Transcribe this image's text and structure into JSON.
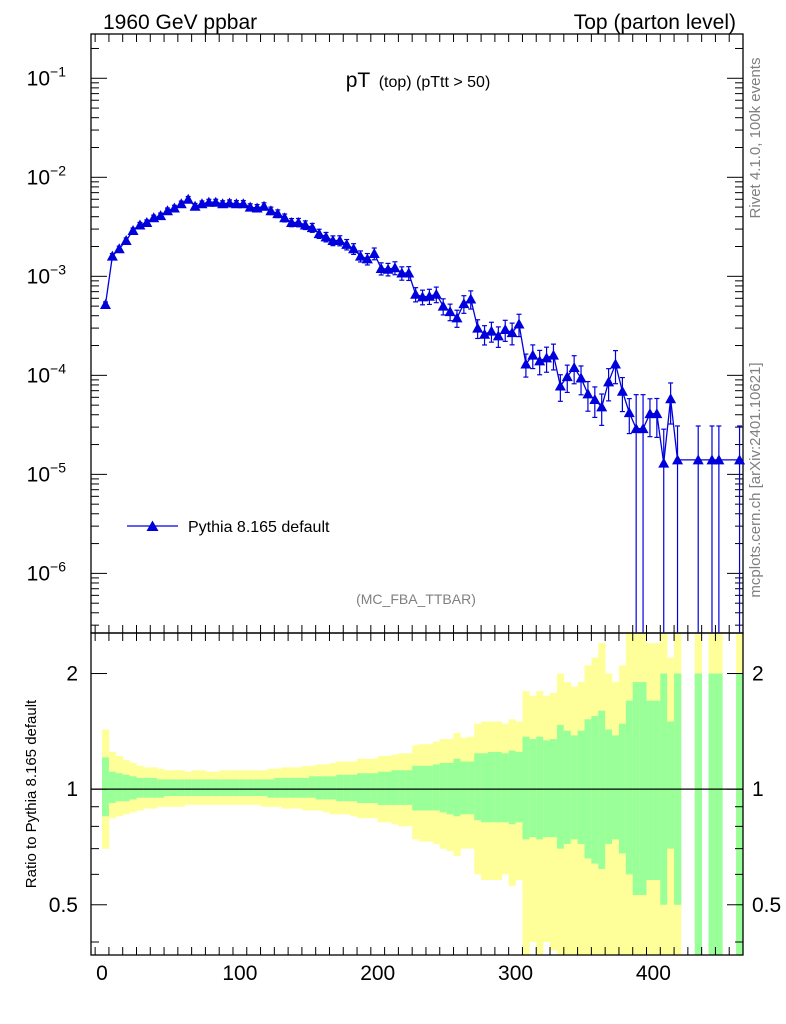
{
  "header": {
    "left": "1960 GeV ppbar",
    "right": "Top (parton level)"
  },
  "side_label_top": "Rivet 4.1.0,  100k events",
  "side_label_bottom": "mcplots.cern.ch [arXiv:2401.10621]",
  "watermark": "(MC_FBA_TTBAR)",
  "colors": {
    "series": "#0000dd",
    "band_outer": "#ffff99",
    "band_inner": "#99ff99",
    "axis": "#000000",
    "side_text": "#808080"
  },
  "chart_data": [
    {
      "type": "line",
      "title": "pT (top) (pTtt > 50)",
      "title_main": "pT",
      "title_sub": "(top) (pTtt > 50)",
      "xlabel": "",
      "ylabel": "",
      "yscale": "log",
      "xlim": [
        -8,
        465
      ],
      "ylim": [
        2.5e-07,
        0.28
      ],
      "ytick_labels": [
        "10^-6",
        "10^-5",
        "10^-4",
        "10^-3",
        "10^-2",
        "10^-1"
      ],
      "legend": {
        "placement": "bottom-left",
        "entries": [
          "Pythia 8.165 default"
        ]
      },
      "series": [
        {
          "name": "Pythia 8.165 default",
          "marker": "triangle",
          "x": [
            2.5,
            7.5,
            12.5,
            17.5,
            22.5,
            27.5,
            32.5,
            37.5,
            42.5,
            47.5,
            52.5,
            57.5,
            62.5,
            67.5,
            72.5,
            77.5,
            82.5,
            87.5,
            92.5,
            97.5,
            102.5,
            107.5,
            112.5,
            117.5,
            122.5,
            127.5,
            132.5,
            137.5,
            142.5,
            147.5,
            152.5,
            157.5,
            162.5,
            167.5,
            172.5,
            177.5,
            182.5,
            187.5,
            192.5,
            197.5,
            202.5,
            207.5,
            212.5,
            217.5,
            222.5,
            227.5,
            232.5,
            237.5,
            242.5,
            247.5,
            252.5,
            257.5,
            262.5,
            267.5,
            272.5,
            277.5,
            282.5,
            287.5,
            292.5,
            297.5,
            302.5,
            307.5,
            312.5,
            317.5,
            322.5,
            327.5,
            332.5,
            337.5,
            342.5,
            347.5,
            352.5,
            357.5,
            362.5,
            367.5,
            372.5,
            377.5,
            382.5,
            387.5,
            392.5,
            397.5,
            402.5,
            407.5,
            412.5,
            417.5,
            432.5,
            442.5,
            447.5,
            462.5
          ],
          "y": [
            0.00052,
            0.0016,
            0.0019,
            0.0023,
            0.0029,
            0.0033,
            0.0035,
            0.0039,
            0.0041,
            0.0046,
            0.0049,
            0.0054,
            0.006,
            0.0051,
            0.0054,
            0.0056,
            0.0056,
            0.0054,
            0.0055,
            0.0054,
            0.0054,
            0.005,
            0.0049,
            0.0051,
            0.0046,
            0.0043,
            0.0039,
            0.0035,
            0.0035,
            0.0033,
            0.0031,
            0.0027,
            0.0025,
            0.0023,
            0.0023,
            0.0021,
            0.0019,
            0.0016,
            0.0015,
            0.0017,
            0.0012,
            0.00118,
            0.00122,
            0.00108,
            0.00108,
            0.00066,
            0.00062,
            0.00063,
            0.00066,
            0.0005,
            0.00044,
            0.00038,
            0.00053,
            0.00059,
            0.0003,
            0.00026,
            0.00028,
            0.00025,
            0.00029,
            0.00027,
            0.00033,
            0.00013,
            0.00016,
            0.00014,
            0.00015,
            0.00016,
            7.8e-05,
            9.7e-05,
            0.00012,
            9.4e-05,
            6.5e-05,
            5.7e-05,
            4.8e-05,
            8.6e-05,
            0.00013,
            6.9e-05,
            4.2e-05,
            2.9e-05,
            2.9e-05,
            4.1e-05,
            4.1e-05,
            1.3e-05,
            5.8e-05,
            1.4e-05,
            1.4e-05,
            1.4e-05,
            1.4e-05,
            1.4e-05
          ]
        }
      ]
    },
    {
      "type": "area",
      "title": "",
      "xlabel": "",
      "ylabel": "Ratio to Pythia 8.165 default",
      "yscale": "log",
      "xlim": [
        -8,
        465
      ],
      "ylim": [
        0.37,
        2.55
      ],
      "xtick_labels": [
        "0",
        "100",
        "200",
        "300",
        "400"
      ],
      "xticks": [
        0,
        100,
        200,
        300,
        400
      ],
      "ytick_labels": [
        "0.5",
        "1",
        "2"
      ],
      "yticks": [
        0.5,
        1,
        2
      ],
      "reference_line": 1,
      "bands": {
        "bin_edges": [
          0,
          5,
          10,
          15,
          20,
          25,
          30,
          35,
          40,
          45,
          50,
          55,
          60,
          65,
          70,
          75,
          80,
          85,
          90,
          95,
          100,
          105,
          110,
          115,
          120,
          125,
          130,
          135,
          140,
          145,
          150,
          155,
          160,
          165,
          170,
          175,
          180,
          185,
          190,
          195,
          200,
          205,
          210,
          215,
          220,
          225,
          230,
          235,
          240,
          245,
          250,
          255,
          260,
          265,
          270,
          275,
          280,
          285,
          290,
          295,
          300,
          305,
          310,
          315,
          320,
          325,
          330,
          335,
          340,
          345,
          350,
          355,
          360,
          365,
          370,
          375,
          380,
          385,
          390,
          395,
          400,
          405,
          410,
          415,
          420,
          425,
          430,
          435,
          440,
          445,
          450,
          455,
          460,
          465
        ],
        "inner_upper": [
          1.21,
          1.11,
          1.1,
          1.09,
          1.08,
          1.07,
          1.07,
          1.07,
          1.06,
          1.06,
          1.06,
          1.06,
          1.06,
          1.06,
          1.06,
          1.06,
          1.06,
          1.06,
          1.06,
          1.06,
          1.06,
          1.06,
          1.06,
          1.06,
          1.06,
          1.07,
          1.07,
          1.07,
          1.07,
          1.07,
          1.08,
          1.08,
          1.08,
          1.08,
          1.09,
          1.09,
          1.09,
          1.1,
          1.1,
          1.1,
          1.11,
          1.11,
          1.12,
          1.12,
          1.12,
          1.15,
          1.15,
          1.15,
          1.16,
          1.17,
          1.17,
          1.2,
          1.18,
          1.18,
          1.24,
          1.24,
          1.25,
          1.25,
          1.24,
          1.26,
          1.25,
          1.37,
          1.35,
          1.37,
          1.34,
          1.35,
          1.47,
          1.42,
          1.38,
          1.42,
          1.52,
          1.55,
          1.6,
          1.43,
          1.38,
          1.48,
          1.7,
          1.9,
          1.9,
          1.7,
          1.7,
          2.0,
          1.5,
          2.0,
          0,
          0,
          2.0,
          0,
          2.0,
          2.0,
          0,
          0,
          2.0
        ],
        "inner_lower": [
          0.85,
          0.92,
          0.93,
          0.93,
          0.94,
          0.95,
          0.95,
          0.95,
          0.95,
          0.96,
          0.96,
          0.96,
          0.96,
          0.96,
          0.96,
          0.96,
          0.96,
          0.96,
          0.96,
          0.96,
          0.96,
          0.96,
          0.96,
          0.96,
          0.95,
          0.95,
          0.95,
          0.95,
          0.95,
          0.95,
          0.95,
          0.94,
          0.94,
          0.94,
          0.93,
          0.93,
          0.93,
          0.92,
          0.92,
          0.92,
          0.91,
          0.91,
          0.91,
          0.91,
          0.91,
          0.88,
          0.88,
          0.88,
          0.88,
          0.87,
          0.86,
          0.85,
          0.86,
          0.86,
          0.83,
          0.82,
          0.82,
          0.82,
          0.82,
          0.81,
          0.82,
          0.74,
          0.75,
          0.74,
          0.75,
          0.75,
          0.7,
          0.72,
          0.74,
          0.72,
          0.66,
          0.64,
          0.62,
          0.72,
          0.74,
          0.68,
          0.6,
          0.53,
          0.53,
          0.58,
          0.58,
          0.5,
          0.7,
          0.5,
          0,
          0,
          0.37,
          0,
          0.37,
          0.37,
          0,
          0,
          0.37
        ],
        "outer_upper": [
          1.43,
          1.25,
          1.22,
          1.19,
          1.17,
          1.15,
          1.14,
          1.14,
          1.13,
          1.12,
          1.12,
          1.12,
          1.11,
          1.12,
          1.12,
          1.11,
          1.11,
          1.12,
          1.12,
          1.12,
          1.12,
          1.12,
          1.12,
          1.12,
          1.13,
          1.13,
          1.14,
          1.14,
          1.14,
          1.15,
          1.15,
          1.16,
          1.16,
          1.17,
          1.18,
          1.18,
          1.18,
          1.2,
          1.2,
          1.2,
          1.22,
          1.22,
          1.23,
          1.24,
          1.24,
          1.3,
          1.31,
          1.31,
          1.33,
          1.35,
          1.35,
          1.4,
          1.36,
          1.37,
          1.48,
          1.5,
          1.5,
          1.5,
          1.48,
          1.52,
          1.5,
          1.8,
          1.75,
          1.8,
          1.75,
          1.78,
          2.0,
          1.9,
          1.85,
          1.9,
          2.1,
          2.2,
          2.4,
          2.0,
          1.9,
          2.1,
          2.55,
          2.55,
          2.55,
          2.4,
          2.4,
          2.55,
          2.2,
          2.55,
          0,
          0,
          2.55,
          0,
          2.55,
          2.55,
          0,
          0,
          2.55
        ],
        "outer_lower": [
          0.7,
          0.84,
          0.85,
          0.86,
          0.87,
          0.88,
          0.89,
          0.89,
          0.9,
          0.9,
          0.9,
          0.9,
          0.91,
          0.91,
          0.91,
          0.91,
          0.91,
          0.91,
          0.91,
          0.91,
          0.91,
          0.91,
          0.91,
          0.9,
          0.9,
          0.9,
          0.89,
          0.89,
          0.89,
          0.88,
          0.88,
          0.88,
          0.87,
          0.86,
          0.86,
          0.86,
          0.85,
          0.84,
          0.84,
          0.84,
          0.82,
          0.82,
          0.81,
          0.8,
          0.8,
          0.74,
          0.73,
          0.73,
          0.72,
          0.7,
          0.69,
          0.67,
          0.7,
          0.7,
          0.6,
          0.58,
          0.58,
          0.58,
          0.6,
          0.56,
          0.58,
          0.37,
          0.4,
          0.37,
          0.4,
          0.38,
          0.37,
          0.37,
          0.37,
          0.37,
          0.37,
          0.37,
          0.37,
          0.37,
          0.37,
          0.37,
          0.37,
          0.37,
          0.37,
          0.37,
          0.37,
          0.37,
          0.37,
          0.37,
          0,
          0,
          0.37,
          0,
          0.37,
          0.37,
          0,
          0,
          0.37
        ]
      }
    }
  ]
}
